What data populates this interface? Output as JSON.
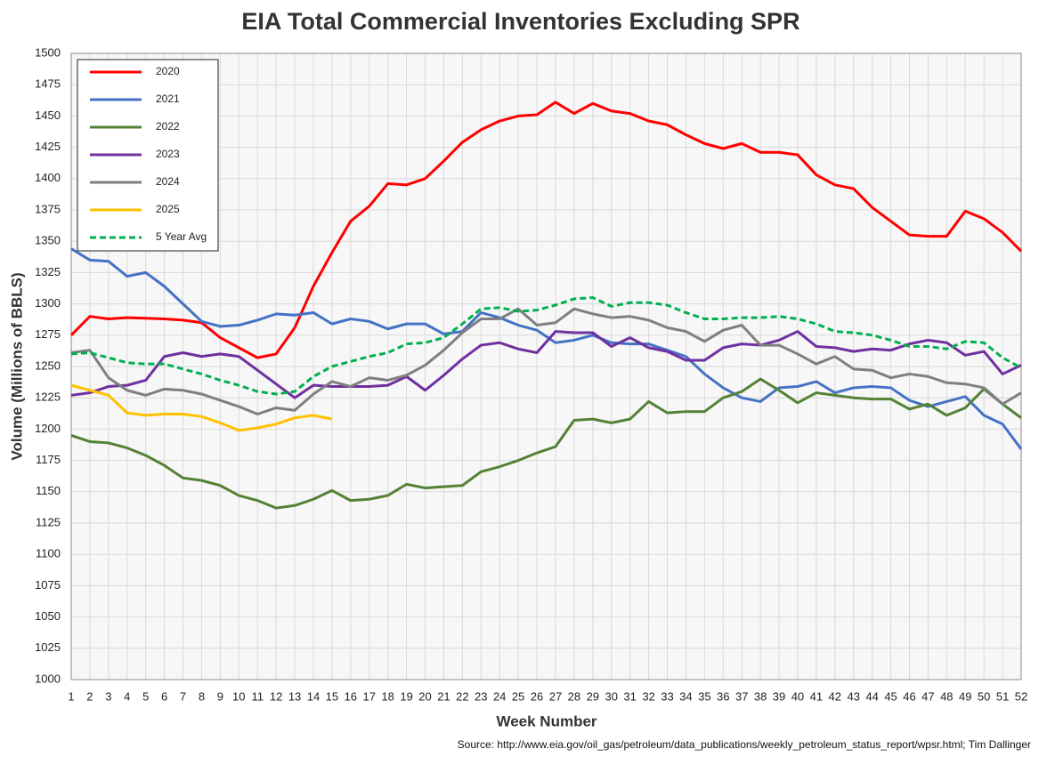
{
  "chart_data": {
    "type": "line",
    "title": "EIA Total Commercial Inventories Excluding SPR",
    "xlabel": "Week Number",
    "ylabel": "Volume (Millions of BBLS)",
    "source": "Source: http://www.eia.gov/oil_gas/petroleum/data_publications/weekly_petroleum_status_report/wpsr.html; Tim Dallinger",
    "x": [
      1,
      2,
      3,
      4,
      5,
      6,
      7,
      8,
      9,
      10,
      11,
      12,
      13,
      14,
      15,
      16,
      17,
      18,
      19,
      20,
      21,
      22,
      23,
      24,
      25,
      26,
      27,
      28,
      29,
      30,
      31,
      32,
      33,
      34,
      35,
      36,
      37,
      38,
      39,
      40,
      41,
      42,
      43,
      44,
      45,
      46,
      47,
      48,
      49,
      50,
      51,
      52
    ],
    "xlim": [
      1,
      52
    ],
    "xticks": [
      1,
      2,
      3,
      4,
      5,
      6,
      7,
      8,
      9,
      10,
      11,
      12,
      13,
      14,
      15,
      16,
      17,
      18,
      19,
      20,
      21,
      22,
      23,
      24,
      25,
      26,
      27,
      28,
      29,
      30,
      31,
      32,
      33,
      34,
      35,
      36,
      37,
      38,
      39,
      40,
      41,
      42,
      43,
      44,
      45,
      46,
      47,
      48,
      49,
      50,
      51,
      52
    ],
    "ylim": [
      1000,
      1500
    ],
    "yticks": [
      1000,
      1025,
      1050,
      1075,
      1100,
      1125,
      1150,
      1175,
      1200,
      1225,
      1250,
      1275,
      1300,
      1325,
      1350,
      1375,
      1400,
      1425,
      1450,
      1475,
      1500
    ],
    "grid": true,
    "legend": "upper left",
    "series": [
      {
        "name": "2020",
        "color": "#ff0000",
        "dashed": false,
        "values": [
          1275,
          1290,
          1288,
          1289,
          1288.5,
          1288,
          1287,
          1285,
          1273,
          1265,
          1257,
          1260,
          1281,
          1314,
          1341,
          1366,
          1378,
          1396,
          1395,
          1400,
          1414,
          1429,
          1439,
          1446,
          1450,
          1451,
          1461,
          1452,
          1460,
          1454,
          1452,
          1446,
          1443,
          1435,
          1428,
          1424,
          1428,
          1421,
          1421,
          1419,
          1403,
          1395,
          1392,
          1377,
          1366,
          1355,
          1354,
          1354,
          1374,
          1368,
          1357,
          1342
        ]
      },
      {
        "name": "2021",
        "color": "#4472c4",
        "dashed": false,
        "values": [
          1344,
          1335,
          1334,
          1322,
          1325,
          1314,
          1300,
          1286,
          1282,
          1283,
          1287,
          1292,
          1291,
          1293,
          1284,
          1288,
          1286,
          1280,
          1284,
          1284,
          1276,
          1278,
          1293,
          1289,
          1283,
          1279,
          1269,
          1271,
          1275,
          1269,
          1268,
          1268,
          1263,
          1258,
          1244,
          1233,
          1225,
          1222,
          1233,
          1234,
          1238,
          1229,
          1233,
          1234,
          1233,
          1223,
          1218,
          1222,
          1226,
          1211,
          1204,
          1184
        ]
      },
      {
        "name": "2022",
        "color": "#548235",
        "dashed": false,
        "values": [
          1195,
          1190,
          1189,
          1185,
          1179,
          1171,
          1161,
          1159,
          1155,
          1147,
          1143,
          1137,
          1139,
          1144,
          1151,
          1143,
          1144,
          1147,
          1156,
          1153,
          1154,
          1155,
          1166,
          1170,
          1175,
          1181,
          1186,
          1207,
          1208,
          1205,
          1208,
          1222,
          1213,
          1214,
          1214,
          1225,
          1230,
          1240,
          1231,
          1221,
          1229,
          1227,
          1225,
          1224,
          1224,
          1216,
          1220,
          1211,
          1217,
          1232,
          1220,
          1209
        ]
      },
      {
        "name": "2023",
        "color": "#7030a0",
        "dashed": false,
        "values": [
          1227,
          1229,
          1234,
          1235,
          1239,
          1258,
          1261,
          1258,
          1260,
          1258,
          1247,
          1236,
          1225,
          1235,
          1234,
          1234,
          1234,
          1235,
          1242,
          1231,
          1243,
          1256,
          1267,
          1269,
          1264,
          1261,
          1278,
          1277,
          1277,
          1266,
          1273,
          1265,
          1262,
          1255,
          1255,
          1265,
          1268,
          1267,
          1271,
          1278,
          1266,
          1265,
          1262,
          1264,
          1263,
          1268,
          1271,
          1269,
          1259,
          1262,
          1244,
          1251
        ]
      },
      {
        "name": "2024",
        "color": "#7f7f7f",
        "dashed": false,
        "values": [
          1261,
          1263,
          1241,
          1231,
          1227,
          1232,
          1231,
          1228,
          1223,
          1218,
          1212,
          1217,
          1215,
          1228,
          1238,
          1234,
          1241,
          1239,
          1243,
          1251,
          1263,
          1277,
          1288,
          1288,
          1296,
          1283,
          1285,
          1296,
          1292,
          1289,
          1290,
          1287,
          1281,
          1278,
          1270,
          1279,
          1283,
          1267,
          1267,
          1260,
          1252,
          1258,
          1248,
          1247,
          1241,
          1244,
          1242,
          1237,
          1236,
          1233,
          1220,
          1229
        ]
      },
      {
        "name": "2025",
        "color": "#ffc000",
        "dashed": false,
        "values": [
          1235,
          1231,
          1227,
          1213,
          1211,
          1212,
          1212,
          1210,
          1205,
          1199,
          1201,
          1204,
          1209,
          1211,
          1208,
          null,
          null,
          null,
          null,
          null,
          null,
          null,
          null,
          null,
          null,
          null,
          null,
          null,
          null,
          null,
          null,
          null,
          null,
          null,
          null,
          null,
          null,
          null,
          null,
          null,
          null,
          null,
          null,
          null,
          null,
          null,
          null,
          null,
          null,
          null,
          null,
          null
        ]
      },
      {
        "name": "5 Year Avg",
        "color": "#00b050",
        "dashed": true,
        "values": [
          1260,
          1261,
          1257,
          1253,
          1252,
          1252,
          1248,
          1244,
          1239,
          1235,
          1230,
          1228,
          1230,
          1242,
          1250,
          1254,
          1258,
          1261,
          1268,
          1269,
          1273,
          1284,
          1296,
          1297,
          1294,
          1295,
          1299,
          1304,
          1305,
          1298,
          1301,
          1301,
          1299,
          1293,
          1288,
          1288,
          1289,
          1289,
          1290,
          1288,
          1284,
          1278,
          1277,
          1275,
          1271,
          1266,
          1266,
          1264,
          1270,
          1269,
          1257,
          1249
        ]
      }
    ]
  }
}
